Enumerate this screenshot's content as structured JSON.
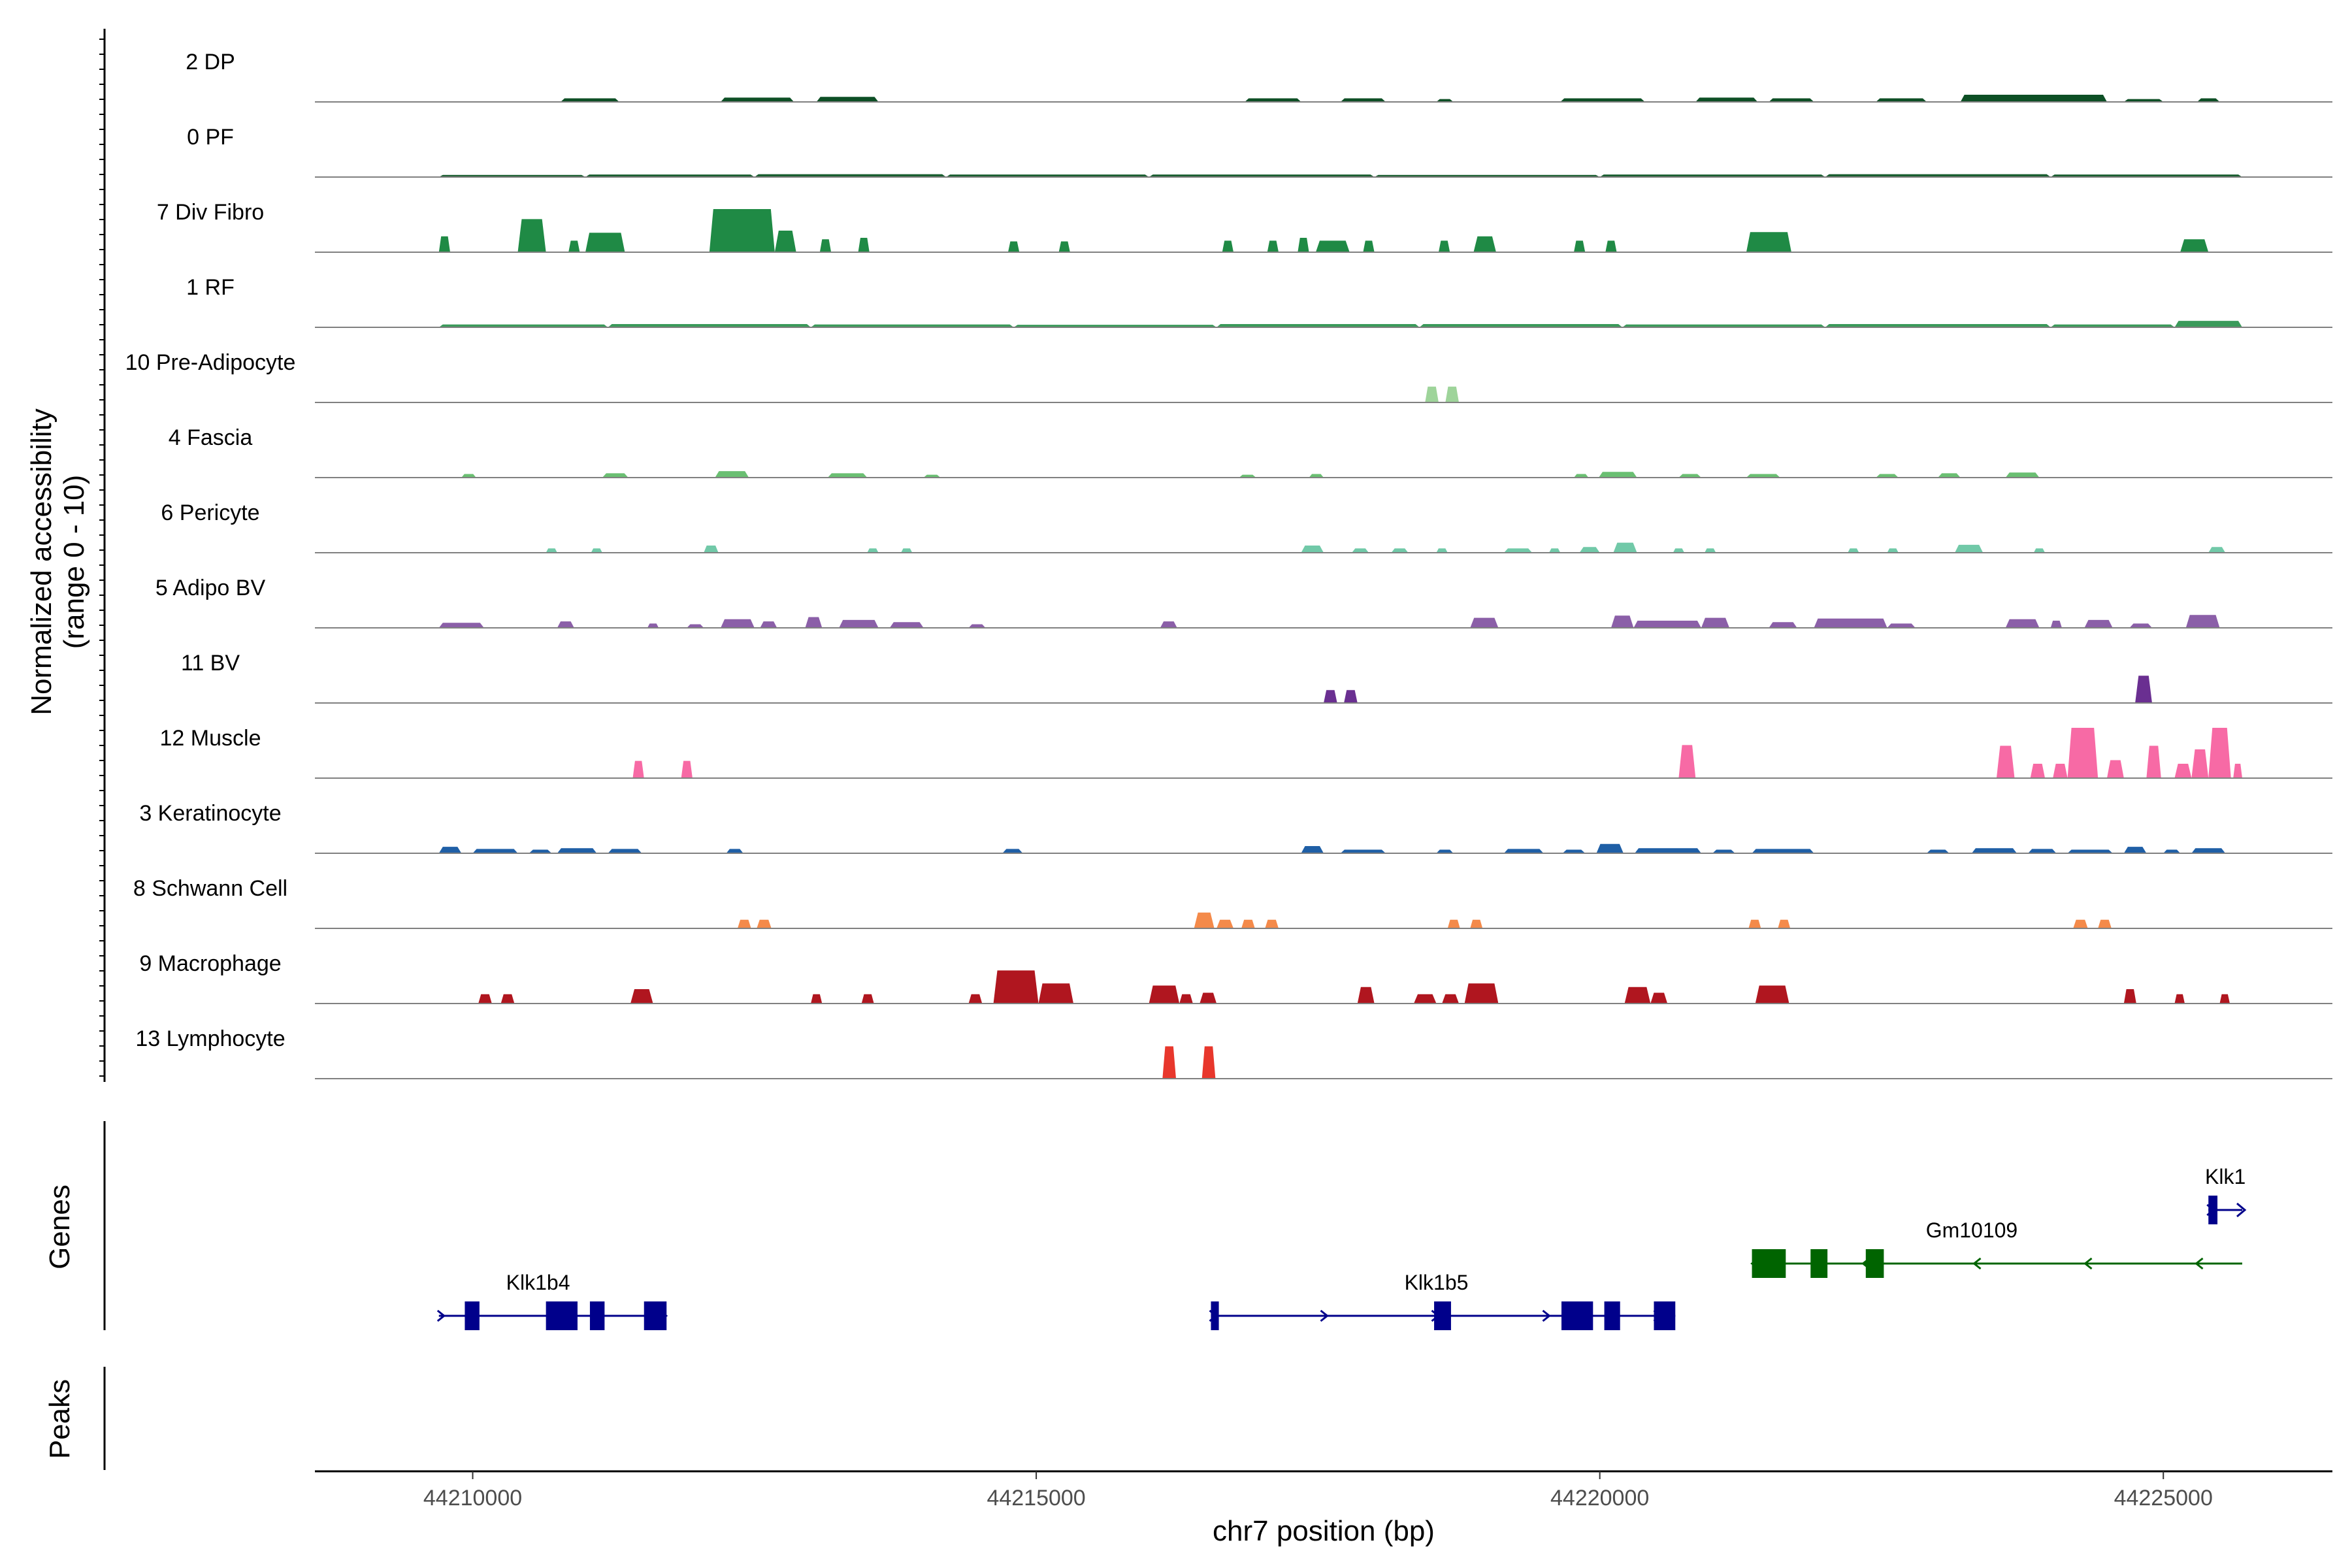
{
  "chart_data": {
    "type": "coverage",
    "xlabel": "chr7 position (bp)",
    "ylabel": [
      "Normalized accessibility",
      "(range 0 - 10)"
    ],
    "genes_panel_label": "Genes",
    "peaks_panel_label": "Peaks",
    "xlim": [
      44208600,
      44226500
    ],
    "x_ticks": [
      44210000,
      44215000,
      44220000,
      44225000
    ],
    "x_tick_labels": [
      "44210000",
      "44215000",
      "44220000",
      "44225000"
    ],
    "ylim": [
      0,
      10
    ],
    "tracks": [
      {
        "name": "2 DP",
        "color": "#0d4f25",
        "peaks": [
          [
            44210780,
            44211300,
            0.5
          ],
          [
            44212200,
            44212850,
            0.6
          ],
          [
            44213050,
            44213600,
            0.7
          ],
          [
            44216850,
            44217350,
            0.5
          ],
          [
            44217700,
            44218100,
            0.5
          ],
          [
            44218550,
            44218700,
            0.4
          ],
          [
            44219650,
            44220400,
            0.5
          ],
          [
            44220850,
            44221400,
            0.6
          ],
          [
            44221500,
            44221900,
            0.5
          ],
          [
            44222450,
            44222900,
            0.5
          ],
          [
            44223200,
            44224500,
            1.0
          ],
          [
            44224650,
            44225000,
            0.4
          ],
          [
            44225300,
            44225500,
            0.5
          ]
        ]
      },
      {
        "name": "0 PF",
        "color": "#1a5e30",
        "peaks": [
          [
            44209700,
            44211000,
            0.3
          ],
          [
            44211000,
            44212500,
            0.35
          ],
          [
            44212500,
            44214200,
            0.4
          ],
          [
            44214200,
            44216000,
            0.35
          ],
          [
            44216000,
            44218000,
            0.35
          ],
          [
            44218000,
            44220000,
            0.3
          ],
          [
            44220000,
            44222000,
            0.35
          ],
          [
            44222000,
            44224000,
            0.4
          ],
          [
            44224000,
            44225700,
            0.35
          ]
        ]
      },
      {
        "name": "7 Div Fibro",
        "color": "#1f8a45",
        "peaks": [
          [
            44209700,
            44209800,
            2.2
          ],
          [
            44210400,
            44210650,
            4.6
          ],
          [
            44210850,
            44210950,
            1.6
          ],
          [
            44211000,
            44211350,
            2.7
          ],
          [
            44212100,
            44212680,
            6.0
          ],
          [
            44212680,
            44212870,
            3.0
          ],
          [
            44213080,
            44213180,
            1.8
          ],
          [
            44213420,
            44213520,
            2.0
          ],
          [
            44214750,
            44214850,
            1.5
          ],
          [
            44215200,
            44215300,
            1.5
          ],
          [
            44216650,
            44216750,
            1.6
          ],
          [
            44217050,
            44217150,
            1.6
          ],
          [
            44217320,
            44217420,
            2.0
          ],
          [
            44217480,
            44217780,
            1.6
          ],
          [
            44217900,
            44218000,
            1.6
          ],
          [
            44218570,
            44218670,
            1.6
          ],
          [
            44218880,
            44219080,
            2.2
          ],
          [
            44219770,
            44219870,
            1.6
          ],
          [
            44220050,
            44220150,
            1.6
          ],
          [
            44221300,
            44221700,
            2.8
          ],
          [
            44225150,
            44225400,
            1.8
          ]
        ]
      },
      {
        "name": "1 RF",
        "color": "#3a9a5a",
        "peaks": [
          [
            44209700,
            44211200,
            0.4
          ],
          [
            44211200,
            44213000,
            0.45
          ],
          [
            44213000,
            44214800,
            0.4
          ],
          [
            44214800,
            44216600,
            0.35
          ],
          [
            44216600,
            44218400,
            0.45
          ],
          [
            44218400,
            44220200,
            0.45
          ],
          [
            44220200,
            44222000,
            0.4
          ],
          [
            44222000,
            44224000,
            0.45
          ],
          [
            44224000,
            44225100,
            0.4
          ],
          [
            44225100,
            44225700,
            0.9
          ]
        ]
      },
      {
        "name": "10 Pre-Adipocyte",
        "color": "#9ed49a",
        "peaks": [
          [
            44218450,
            44218570,
            2.2
          ],
          [
            44218630,
            44218750,
            2.2
          ]
        ]
      },
      {
        "name": "4 Fascia",
        "color": "#6abf72",
        "peaks": [
          [
            44209900,
            44210030,
            0.5
          ],
          [
            44211150,
            44211380,
            0.6
          ],
          [
            44212150,
            44212450,
            0.9
          ],
          [
            44213150,
            44213500,
            0.6
          ],
          [
            44214000,
            44214150,
            0.4
          ],
          [
            44216800,
            44216950,
            0.4
          ],
          [
            44217420,
            44217550,
            0.5
          ],
          [
            44219770,
            44219900,
            0.5
          ],
          [
            44219990,
            44220330,
            0.8
          ],
          [
            44220700,
            44220900,
            0.5
          ],
          [
            44221300,
            44221600,
            0.5
          ],
          [
            44222450,
            44222650,
            0.5
          ],
          [
            44223000,
            44223200,
            0.6
          ],
          [
            44223600,
            44223900,
            0.7
          ]
        ]
      },
      {
        "name": "6 Pericyte",
        "color": "#71c9a8",
        "peaks": [
          [
            44210650,
            44210750,
            0.6
          ],
          [
            44211050,
            44211150,
            0.6
          ],
          [
            44212050,
            44212180,
            1.0
          ],
          [
            44213500,
            44213600,
            0.6
          ],
          [
            44213800,
            44213900,
            0.6
          ],
          [
            44217350,
            44217550,
            1.0
          ],
          [
            44217800,
            44217950,
            0.6
          ],
          [
            44218150,
            44218300,
            0.6
          ],
          [
            44218550,
            44218650,
            0.6
          ],
          [
            44219150,
            44219400,
            0.6
          ],
          [
            44219550,
            44219650,
            0.6
          ],
          [
            44219820,
            44220000,
            0.8
          ],
          [
            44220120,
            44220330,
            1.4
          ],
          [
            44220650,
            44220750,
            0.6
          ],
          [
            44220930,
            44221030,
            0.6
          ],
          [
            44222200,
            44222300,
            0.6
          ],
          [
            44222550,
            44222650,
            0.6
          ],
          [
            44223150,
            44223400,
            1.1
          ],
          [
            44223850,
            44223950,
            0.6
          ],
          [
            44225400,
            44225550,
            0.8
          ]
        ]
      },
      {
        "name": "5 Adipo BV",
        "color": "#8b5fa8",
        "peaks": [
          [
            44209700,
            44210100,
            0.7
          ],
          [
            44210750,
            44210900,
            0.9
          ],
          [
            44211550,
            44211650,
            0.6
          ],
          [
            44211900,
            44212050,
            0.5
          ],
          [
            44212200,
            44212500,
            1.2
          ],
          [
            44212550,
            44212700,
            0.9
          ],
          [
            44212950,
            44213100,
            1.5
          ],
          [
            44213250,
            44213600,
            1.1
          ],
          [
            44213700,
            44214000,
            0.8
          ],
          [
            44214400,
            44214550,
            0.5
          ],
          [
            44216100,
            44216250,
            0.9
          ],
          [
            44218850,
            44219100,
            1.4
          ],
          [
            44220100,
            44220300,
            1.7
          ],
          [
            44220300,
            44220900,
            1.0
          ],
          [
            44220900,
            44221150,
            1.4
          ],
          [
            44221500,
            44221750,
            0.8
          ],
          [
            44221900,
            44222550,
            1.3
          ],
          [
            44222550,
            44222800,
            0.6
          ],
          [
            44223600,
            44223900,
            1.2
          ],
          [
            44224000,
            44224100,
            1.0
          ],
          [
            44224300,
            44224550,
            1.1
          ],
          [
            44224700,
            44224900,
            0.6
          ],
          [
            44225200,
            44225500,
            1.8
          ]
        ]
      },
      {
        "name": "11 BV",
        "color": "#6a2f91",
        "peaks": [
          [
            44217550,
            44217670,
            1.8
          ],
          [
            44217730,
            44217850,
            1.8
          ],
          [
            44224750,
            44224900,
            3.8
          ]
        ]
      },
      {
        "name": "12 Muscle",
        "color": "#f76aa5",
        "peaks": [
          [
            44211420,
            44211520,
            2.4
          ],
          [
            44211850,
            44211950,
            2.4
          ],
          [
            44220700,
            44220850,
            4.6
          ],
          [
            44223520,
            44223680,
            4.5
          ],
          [
            44223820,
            44223950,
            2.0
          ],
          [
            44224020,
            44224150,
            2.0
          ],
          [
            44224150,
            44224420,
            7.0
          ],
          [
            44224500,
            44224650,
            2.5
          ],
          [
            44224850,
            44224980,
            4.5
          ],
          [
            44225100,
            44225250,
            2.0
          ],
          [
            44225250,
            44225400,
            4.0
          ],
          [
            44225400,
            44225600,
            7.0
          ],
          [
            44225620,
            44225700,
            2.0
          ]
        ]
      },
      {
        "name": "3 Keratinocyte",
        "color": "#1f5fa6",
        "peaks": [
          [
            44209700,
            44209900,
            0.9
          ],
          [
            44210000,
            44210400,
            0.6
          ],
          [
            44210500,
            44210700,
            0.5
          ],
          [
            44210750,
            44211100,
            0.7
          ],
          [
            44211200,
            44211500,
            0.6
          ],
          [
            44212250,
            44212400,
            0.6
          ],
          [
            44214700,
            44214880,
            0.6
          ],
          [
            44217350,
            44217550,
            1.0
          ],
          [
            44217700,
            44218100,
            0.5
          ],
          [
            44218550,
            44218700,
            0.5
          ],
          [
            44219150,
            44219500,
            0.6
          ],
          [
            44219670,
            44219870,
            0.5
          ],
          [
            44219970,
            44220210,
            1.3
          ],
          [
            44220310,
            44220900,
            0.7
          ],
          [
            44221000,
            44221200,
            0.5
          ],
          [
            44221350,
            44221900,
            0.6
          ],
          [
            44222900,
            44223100,
            0.5
          ],
          [
            44223300,
            44223700,
            0.7
          ],
          [
            44223800,
            44224050,
            0.6
          ],
          [
            44224150,
            44224550,
            0.5
          ],
          [
            44224650,
            44224850,
            0.9
          ],
          [
            44225000,
            44225150,
            0.5
          ],
          [
            44225250,
            44225550,
            0.7
          ]
        ]
      },
      {
        "name": "8 Schwann Cell",
        "color": "#f48a4a",
        "peaks": [
          [
            44212350,
            44212470,
            1.2
          ],
          [
            44212520,
            44212650,
            1.2
          ],
          [
            44216400,
            44216580,
            2.2
          ],
          [
            44216600,
            44216750,
            1.2
          ],
          [
            44216820,
            44216940,
            1.2
          ],
          [
            44217030,
            44217150,
            1.2
          ],
          [
            44218650,
            44218760,
            1.2
          ],
          [
            44218850,
            44218960,
            1.2
          ],
          [
            44221320,
            44221430,
            1.2
          ],
          [
            44221580,
            44221690,
            1.2
          ],
          [
            44224200,
            44224330,
            1.2
          ],
          [
            44224420,
            44224540,
            1.2
          ]
        ]
      },
      {
        "name": "9 Macrophage",
        "color": "#b0161f",
        "peaks": [
          [
            44210050,
            44210170,
            1.3
          ],
          [
            44210250,
            44210370,
            1.3
          ],
          [
            44211400,
            44211600,
            2.0
          ],
          [
            44213000,
            44213100,
            1.3
          ],
          [
            44213450,
            44213560,
            1.3
          ],
          [
            44214400,
            44214520,
            1.3
          ],
          [
            44214620,
            44215020,
            4.6
          ],
          [
            44215020,
            44215330,
            2.8
          ],
          [
            44216000,
            44216270,
            2.5
          ],
          [
            44216270,
            44216390,
            1.3
          ],
          [
            44216450,
            44216600,
            1.5
          ],
          [
            44217850,
            44218000,
            2.3
          ],
          [
            44218350,
            44218550,
            1.3
          ],
          [
            44218600,
            44218750,
            1.3
          ],
          [
            44218800,
            44219100,
            2.8
          ],
          [
            44220220,
            44220450,
            2.3
          ],
          [
            44220450,
            44220600,
            1.5
          ],
          [
            44221380,
            44221680,
            2.5
          ],
          [
            44224650,
            44224760,
            2.0
          ],
          [
            44225100,
            44225190,
            1.3
          ],
          [
            44225500,
            44225590,
            1.3
          ]
        ]
      },
      {
        "name": "13 Lymphocyte",
        "color": "#e8372c",
        "peaks": [
          [
            44216120,
            44216240,
            4.5
          ],
          [
            44216470,
            44216590,
            4.5
          ]
        ]
      }
    ],
    "genes": [
      {
        "name": "Klk1b4",
        "color": "#00008b",
        "strand": "+",
        "row": 2,
        "start": 44209700,
        "end": 44211720,
        "label_x": 44210580,
        "exons": [
          [
            44209930,
            44210060
          ],
          [
            44210650,
            44210930
          ],
          [
            44211040,
            44211170
          ],
          [
            44211520,
            44211720
          ]
        ]
      },
      {
        "name": "Klk1b5",
        "color": "#00008b",
        "strand": "+",
        "row": 2,
        "start": 44216550,
        "end": 44220670,
        "label_x": 44218550,
        "exons": [
          [
            44216550,
            44216620
          ],
          [
            44218530,
            44218680
          ],
          [
            44219660,
            44219940
          ],
          [
            44220040,
            44220180
          ],
          [
            44220480,
            44220670
          ]
        ]
      },
      {
        "name": "Gm10109",
        "color": "#006400",
        "strand": "-",
        "row": 1,
        "start": 44221350,
        "end": 44225700,
        "label_x": 44223300,
        "exons": [
          [
            44221350,
            44221650
          ],
          [
            44221870,
            44222020
          ],
          [
            44222360,
            44222520
          ]
        ]
      },
      {
        "name": "Klk1",
        "color": "#00008b",
        "strand": "+",
        "row": 0,
        "start": 44225400,
        "end": 44225700,
        "label_x": 44225550,
        "exons": [
          [
            44225400,
            44225480
          ]
        ]
      }
    ]
  }
}
